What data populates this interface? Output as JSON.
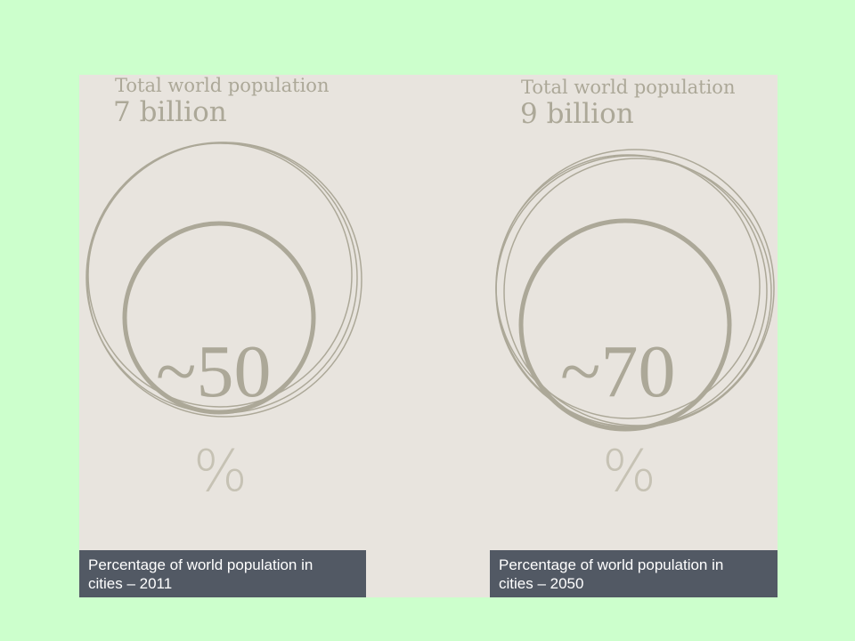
{
  "colors": {
    "background": "#ccffcc",
    "panel": "#e8e4de",
    "text": "#aca898",
    "circle_stroke": "#aca898",
    "caption_bg": "#525964",
    "caption_text": "#ffffff"
  },
  "left": {
    "population_label": "Total world population",
    "population_value": "7 billion",
    "percent_value": "~50",
    "percent_sign": "%",
    "percent_number": 50,
    "caption_line1": "Percentage of world population in",
    "caption_line2": "cities – 2011"
  },
  "right": {
    "population_label": "Total world population",
    "population_value": "9 billion",
    "percent_value": "~70",
    "percent_sign": "%",
    "percent_number": 70,
    "caption_line1": "Percentage of world population in",
    "caption_line2": "cities – 2050"
  }
}
